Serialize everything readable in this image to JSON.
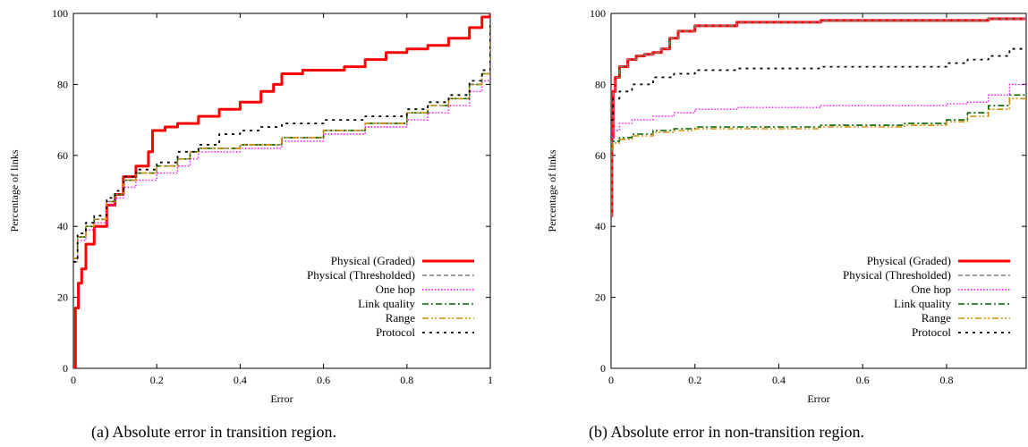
{
  "chart_data": [
    {
      "type": "line",
      "caption": "(a) Absolute error in transition region.",
      "xlabel": "Error",
      "ylabel": "Percentage of links",
      "xlim": [
        0,
        1
      ],
      "ylim": [
        0,
        100
      ],
      "xticks": [
        "0",
        "0.2",
        "0.4",
        "0.6",
        "0.8",
        "1"
      ],
      "yticks": [
        "0",
        "20",
        "40",
        "60",
        "80",
        "100"
      ],
      "legend_position": "bottom-right",
      "series": [
        {
          "name": "Physical (Graded)",
          "color": "#ff0000",
          "style": "solid",
          "x": [
            0,
            0.005,
            0.012,
            0.02,
            0.03,
            0.05,
            0.08,
            0.1,
            0.12,
            0.15,
            0.18,
            0.19,
            0.22,
            0.25,
            0.3,
            0.35,
            0.4,
            0.45,
            0.48,
            0.5,
            0.55,
            0.6,
            0.65,
            0.7,
            0.75,
            0.8,
            0.85,
            0.9,
            0.95,
            0.98,
            1.0
          ],
          "y": [
            0,
            17,
            24,
            28,
            35,
            40,
            46,
            49,
            54,
            57,
            61,
            67,
            68,
            69,
            71,
            73,
            75,
            78,
            80,
            83,
            84,
            84,
            85,
            87,
            89,
            90,
            91,
            93,
            96,
            99,
            100
          ]
        },
        {
          "name": "Physical (Thresholded)",
          "color": "#808080",
          "style": "dashed",
          "x": [
            0,
            0.01,
            0.03,
            0.05,
            0.08,
            0.1,
            0.12,
            0.15,
            0.2,
            0.25,
            0.28,
            0.3,
            0.4,
            0.5,
            0.6,
            0.7,
            0.8,
            0.85,
            0.9,
            0.95,
            0.98,
            1.0
          ],
          "y": [
            30,
            37,
            40,
            42,
            47,
            49,
            53,
            55,
            57,
            59,
            61,
            62,
            63,
            65,
            67,
            69,
            72,
            74,
            76,
            80,
            83,
            97
          ]
        },
        {
          "name": "One hop",
          "color": "#ff00ff",
          "style": "dotted",
          "x": [
            0,
            0.01,
            0.03,
            0.05,
            0.08,
            0.1,
            0.12,
            0.15,
            0.2,
            0.25,
            0.28,
            0.3,
            0.4,
            0.5,
            0.6,
            0.7,
            0.8,
            0.85,
            0.9,
            0.95,
            0.98,
            1.0
          ],
          "y": [
            31,
            36,
            39,
            41,
            46,
            48,
            51,
            53,
            55,
            57,
            59,
            61,
            62,
            64,
            66,
            68,
            70,
            72,
            74,
            78,
            81,
            95
          ]
        },
        {
          "name": "Link quality",
          "color": "#006400",
          "style": "dashdot",
          "x": [
            0,
            0.01,
            0.03,
            0.05,
            0.08,
            0.1,
            0.12,
            0.15,
            0.2,
            0.25,
            0.28,
            0.3,
            0.4,
            0.5,
            0.6,
            0.7,
            0.8,
            0.85,
            0.9,
            0.95,
            0.98,
            1.0
          ],
          "y": [
            31,
            37,
            40,
            42,
            47,
            49,
            53,
            55,
            57,
            59,
            61,
            62,
            63,
            65,
            67,
            69,
            72,
            74,
            76,
            80,
            83,
            97
          ]
        },
        {
          "name": "Range",
          "color": "#d4900a",
          "style": "dashdotdot",
          "x": [
            0,
            0.01,
            0.03,
            0.05,
            0.08,
            0.1,
            0.12,
            0.15,
            0.2,
            0.25,
            0.28,
            0.3,
            0.4,
            0.5,
            0.6,
            0.7,
            0.8,
            0.85,
            0.9,
            0.95,
            0.98,
            1.0
          ],
          "y": [
            31,
            37,
            40,
            42,
            47,
            49,
            53,
            55,
            57,
            59,
            61,
            62,
            63,
            65,
            67,
            69,
            72,
            74,
            76,
            80,
            83,
            97
          ]
        },
        {
          "name": "Protocol",
          "color": "#000000",
          "style": "dotdash",
          "x": [
            0,
            0.01,
            0.03,
            0.05,
            0.08,
            0.1,
            0.12,
            0.15,
            0.2,
            0.25,
            0.3,
            0.35,
            0.4,
            0.45,
            0.5,
            0.6,
            0.7,
            0.8,
            0.85,
            0.9,
            0.95,
            0.98,
            1.0
          ],
          "y": [
            30,
            38,
            41,
            43,
            48,
            50,
            54,
            56,
            58,
            61,
            63,
            66,
            67,
            68,
            69,
            70,
            71,
            73,
            75,
            77,
            81,
            84,
            98
          ]
        }
      ]
    },
    {
      "type": "line",
      "caption": "(b) Absolute error in non-transition region.",
      "xlabel": "Error",
      "ylabel": "Percentage of links",
      "xlim": [
        0,
        1
      ],
      "ylim": [
        0,
        100
      ],
      "xticks": [
        "0",
        "0.2",
        "0.4",
        "0.6",
        "0.8"
      ],
      "yticks": [
        "0",
        "20",
        "40",
        "60",
        "80",
        "100"
      ],
      "legend_position": "bottom-right",
      "series": [
        {
          "name": "Physical (Graded)",
          "color": "#ff0000",
          "style": "solid",
          "x": [
            0,
            0.002,
            0.005,
            0.01,
            0.02,
            0.04,
            0.06,
            0.08,
            0.1,
            0.12,
            0.14,
            0.16,
            0.2,
            0.3,
            0.5,
            0.7,
            0.9,
            1.0
          ],
          "y": [
            43,
            65,
            78,
            82,
            85,
            87,
            88,
            88.5,
            89,
            90,
            93,
            95,
            96.5,
            97.5,
            98,
            98,
            98.5,
            99
          ]
        },
        {
          "name": "Physical (Thresholded)",
          "color": "#808080",
          "style": "dashed",
          "x": [
            0,
            0.002,
            0.005,
            0.01,
            0.02,
            0.04,
            0.06,
            0.08,
            0.1,
            0.12,
            0.14,
            0.16,
            0.2,
            0.3,
            0.5,
            0.7,
            0.9,
            1.0
          ],
          "y": [
            43,
            65,
            78,
            82,
            85,
            87,
            88,
            88.5,
            89,
            90,
            93,
            95,
            96.5,
            97.5,
            98,
            98,
            98.5,
            99
          ]
        },
        {
          "name": "One hop",
          "color": "#ff00ff",
          "style": "dotted",
          "x": [
            0,
            0.005,
            0.02,
            0.05,
            0.1,
            0.15,
            0.2,
            0.3,
            0.5,
            0.7,
            0.8,
            0.85,
            0.9,
            0.95,
            1.0
          ],
          "y": [
            65,
            67,
            69,
            70,
            71,
            72,
            73,
            73.5,
            74,
            74,
            74.5,
            75,
            77,
            80,
            85
          ]
        },
        {
          "name": "Link quality",
          "color": "#006400",
          "style": "dashdot",
          "x": [
            0,
            0.005,
            0.02,
            0.05,
            0.1,
            0.15,
            0.2,
            0.3,
            0.5,
            0.7,
            0.8,
            0.85,
            0.9,
            0.95,
            1.0
          ],
          "y": [
            62,
            64,
            65,
            66,
            67,
            67.5,
            68,
            68,
            68.5,
            69,
            70,
            72,
            74,
            77,
            85
          ]
        },
        {
          "name": "Range",
          "color": "#d4900a",
          "style": "dashdotdot",
          "x": [
            0,
            0.005,
            0.02,
            0.05,
            0.1,
            0.15,
            0.2,
            0.3,
            0.5,
            0.7,
            0.8,
            0.85,
            0.9,
            0.95,
            1.0
          ],
          "y": [
            62,
            63.5,
            64.5,
            65.5,
            66.5,
            67,
            67.5,
            67.5,
            68,
            68.5,
            69.5,
            71,
            73,
            76,
            84
          ]
        },
        {
          "name": "Protocol",
          "color": "#000000",
          "style": "dotdash",
          "x": [
            0,
            0.005,
            0.02,
            0.05,
            0.1,
            0.15,
            0.2,
            0.3,
            0.5,
            0.7,
            0.8,
            0.85,
            0.9,
            0.95,
            1.0
          ],
          "y": [
            70,
            76,
            78,
            80,
            82,
            83,
            84,
            84.5,
            85,
            85,
            86,
            87,
            88,
            90,
            94
          ]
        }
      ]
    }
  ]
}
